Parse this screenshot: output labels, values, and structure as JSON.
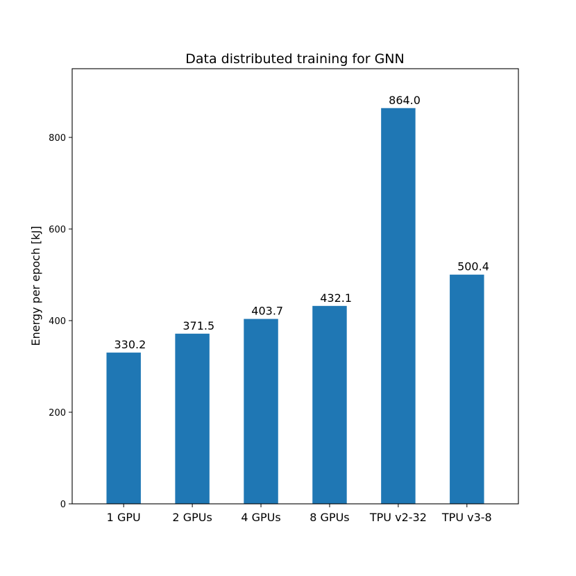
{
  "chart_data": {
    "type": "bar",
    "title": "Data distributed training for GNN",
    "xlabel": "",
    "ylabel": "Energy per epoch [kJ]",
    "categories": [
      "1 GPU",
      "2 GPUs",
      "4 GPUs",
      "8 GPUs",
      "TPU v2-32",
      "TPU v3-8"
    ],
    "values": [
      330.2,
      371.5,
      403.7,
      432.1,
      864.0,
      500.4
    ],
    "data_labels": [
      "330.2",
      "371.5",
      "403.7",
      "432.1",
      "864.0",
      "500.4"
    ],
    "ylim": [
      0,
      950
    ],
    "yticks": [
      0,
      200,
      400,
      600,
      800
    ],
    "grid": false,
    "legend": "none",
    "bar_color": "#1f77b4"
  }
}
